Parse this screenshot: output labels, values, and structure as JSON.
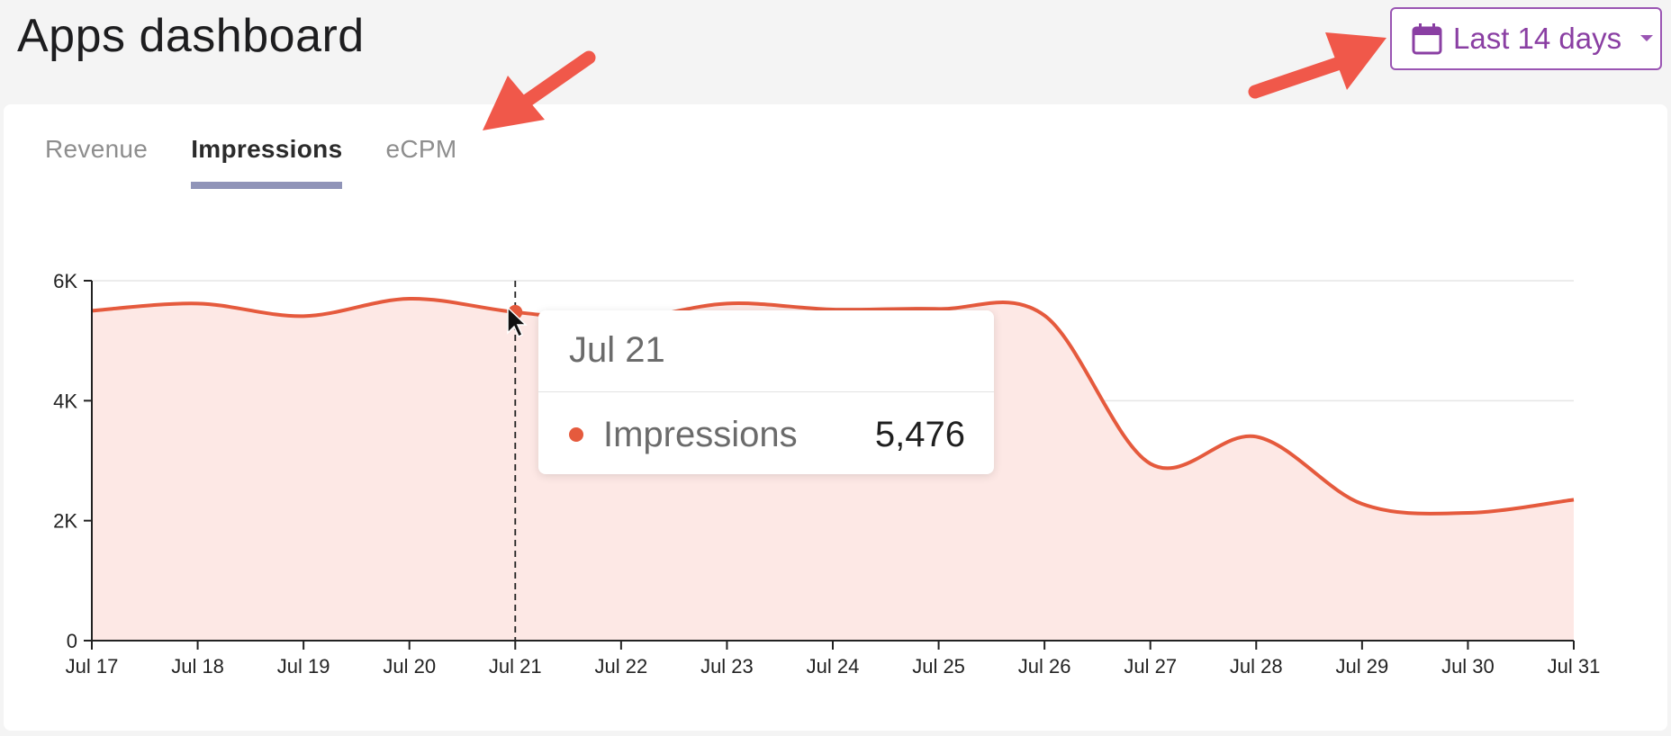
{
  "header": {
    "title": "Apps dashboard",
    "date_range_label": "Last 14 days"
  },
  "tabs": [
    {
      "label": "Revenue",
      "active": false
    },
    {
      "label": "Impressions",
      "active": true
    },
    {
      "label": "eCPM",
      "active": false
    }
  ],
  "tooltip": {
    "date": "Jul 21",
    "series_label": "Impressions",
    "value": "5,476"
  },
  "colors": {
    "accent": "#9a55b3",
    "series_line": "#e55a3d",
    "series_fill": "#fde8e5",
    "tab_underline": "#9094b8",
    "annotation_arrow": "#f0584a"
  },
  "icons": {
    "date_button": "calendar-icon",
    "date_button_caret": "chevron-down-icon"
  },
  "chart_data": {
    "type": "area",
    "x": [
      "Jul 17",
      "Jul 18",
      "Jul 19",
      "Jul 20",
      "Jul 21",
      "Jul 22",
      "Jul 23",
      "Jul 24",
      "Jul 25",
      "Jul 26",
      "Jul 27",
      "Jul 28",
      "Jul 29",
      "Jul 30",
      "Jul 31"
    ],
    "series": [
      {
        "name": "Impressions",
        "values": [
          5500,
          5620,
          5410,
          5700,
          5476,
          5350,
          5620,
          5520,
          5530,
          5420,
          2950,
          3400,
          2280,
          2130,
          2350
        ]
      }
    ],
    "y_ticks": [
      "0",
      "2K",
      "4K",
      "6K"
    ],
    "ylim": [
      0,
      6000
    ],
    "grid": true,
    "highlight_index": 4
  }
}
